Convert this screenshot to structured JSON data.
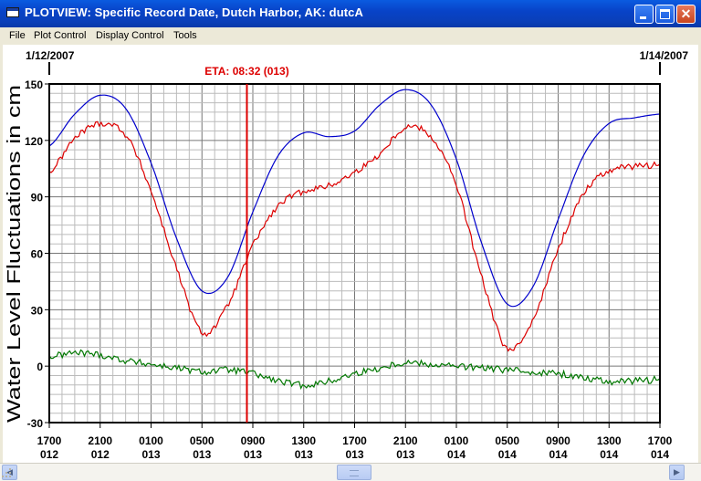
{
  "window": {
    "title": "PLOTVIEW: Specific Record Date, Dutch Harbor, AK: dutcA",
    "controls": [
      "minimize",
      "maximize",
      "close"
    ]
  },
  "menu": {
    "items": [
      "File",
      "Plot Control",
      "Display Control",
      "Tools"
    ]
  },
  "chart_data": {
    "type": "line",
    "start_date_label": "1/12/2007",
    "end_date_label": "1/14/2007",
    "eta_label": "ETA: 08:32 (013)",
    "eta_x": "013 08:32",
    "ylabel": "Water Level Fluctuations in cm",
    "ylim": [
      -30,
      150
    ],
    "yticks": [
      150,
      120,
      90,
      60,
      30,
      0,
      -30
    ],
    "x_range": [
      "012 17:00",
      "014 17:00"
    ],
    "x_tick_labels": [
      [
        "1700",
        "012"
      ],
      [
        "2100",
        "012"
      ],
      [
        "0100",
        "013"
      ],
      [
        "0500",
        "013"
      ],
      [
        "0900",
        "013"
      ],
      [
        "1300",
        "013"
      ],
      [
        "1700",
        "013"
      ],
      [
        "2100",
        "013"
      ],
      [
        "0100",
        "014"
      ],
      [
        "0500",
        "014"
      ],
      [
        "0900",
        "014"
      ],
      [
        "1300",
        "014"
      ],
      [
        "1700",
        "014"
      ]
    ],
    "grid": true,
    "colors": {
      "predicted": "#0000CC",
      "observed": "#DD0000",
      "residual": "#007700",
      "eta": "#DD0000"
    },
    "series": [
      {
        "key": "predicted",
        "x": [
          "012 17:00",
          "012 19:00",
          "012 21:00",
          "012 23:00",
          "013 01:00",
          "013 03:00",
          "013 05:00",
          "013 07:00",
          "013 09:00",
          "013 11:00",
          "013 13:00",
          "013 15:00",
          "013 17:00",
          "013 19:00",
          "013 21:00",
          "013 23:00",
          "014 01:00",
          "014 03:00",
          "014 05:00",
          "014 07:00",
          "014 09:00",
          "014 11:00",
          "014 13:00",
          "014 15:00",
          "014 17:00"
        ],
        "values": [
          117,
          134,
          144,
          137,
          108,
          68,
          40,
          47,
          82,
          112,
          124,
          122,
          125,
          139,
          147,
          139,
          110,
          65,
          33,
          42,
          78,
          112,
          129,
          132,
          134
        ]
      },
      {
        "key": "observed",
        "x": [
          "012 17:00",
          "012 19:00",
          "012 21:00",
          "012 23:00",
          "013 01:00",
          "013 03:00",
          "013 05:00",
          "013 07:00",
          "013 09:00",
          "013 11:00",
          "013 13:00",
          "013 15:00",
          "013 17:00",
          "013 19:00",
          "013 21:00",
          "013 23:00",
          "014 01:00",
          "014 03:00",
          "014 05:00",
          "014 07:00",
          "014 09:00",
          "014 11:00",
          "014 13:00",
          "014 15:00",
          "014 17:00"
        ],
        "values": [
          103,
          121,
          129,
          123,
          93,
          52,
          18,
          32,
          64,
          85,
          93,
          96,
          103,
          113,
          127,
          122,
          96,
          47,
          9,
          25,
          62,
          92,
          104,
          106,
          107
        ]
      },
      {
        "key": "residual",
        "x": [
          "012 17:00",
          "012 19:00",
          "012 21:00",
          "012 23:00",
          "013 01:00",
          "013 03:00",
          "013 05:00",
          "013 07:00",
          "013 09:00",
          "013 11:00",
          "013 13:00",
          "013 15:00",
          "013 17:00",
          "013 19:00",
          "013 21:00",
          "013 23:00",
          "014 01:00",
          "014 03:00",
          "014 05:00",
          "014 07:00",
          "014 09:00",
          "014 11:00",
          "014 13:00",
          "014 15:00",
          "014 17:00"
        ],
        "values": [
          5,
          7,
          6,
          3,
          1,
          -1,
          -3,
          -2,
          -4,
          -8,
          -10,
          -8,
          -4,
          -1,
          2,
          1,
          0,
          -1,
          -2,
          -3,
          -4,
          -6,
          -8,
          -8,
          -7
        ]
      }
    ]
  }
}
